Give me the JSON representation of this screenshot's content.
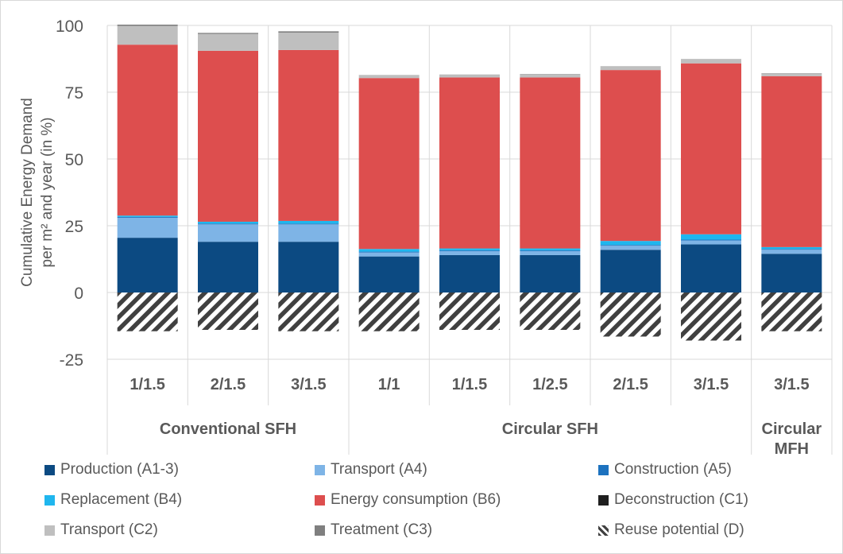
{
  "chart_data": {
    "type": "bar",
    "stacked": true,
    "ylabel": "Cumulative Energy Demand per m² and year (in %)",
    "ylim": [
      -25,
      100
    ],
    "yticks": [
      -25,
      0,
      25,
      50,
      75,
      100
    ],
    "grid": true,
    "legend_position": "bottom",
    "categories": [
      "1/1.5",
      "2/1.5",
      "3/1.5",
      "1/1",
      "1/1.5",
      "1/2.5",
      "2/1.5",
      "3/1.5",
      "3/1.5"
    ],
    "groups": [
      {
        "label": "Conventional SFH",
        "count": 3
      },
      {
        "label": "Circular SFH",
        "count": 5
      },
      {
        "label": "Circular MFH",
        "count": 1
      }
    ],
    "series": [
      {
        "name": "Production (A1-3)",
        "color": "#0c4a82",
        "values": [
          20.5,
          19,
          19,
          13.5,
          14,
          14,
          16,
          18,
          14.5
        ]
      },
      {
        "name": "Transport (A4)",
        "color": "#7eb4e6",
        "values": [
          7.5,
          6.5,
          6.5,
          1.5,
          1.5,
          1.5,
          1.5,
          1.5,
          1.5
        ]
      },
      {
        "name": "Construction (A5)",
        "color": "#1d72bf",
        "values": [
          0.3,
          0.3,
          0.3,
          0.3,
          0.3,
          0.3,
          0.3,
          0.3,
          0.3
        ]
      },
      {
        "name": "Replacement (B4)",
        "color": "#1fb6ee",
        "values": [
          0.5,
          0.7,
          1,
          1,
          0.7,
          0.7,
          1.5,
          2,
          0.7
        ]
      },
      {
        "name": "Energy consumption (B6)",
        "color": "#dd4e4e",
        "values": [
          64,
          64,
          64,
          64,
          64,
          64,
          64,
          64,
          64
        ]
      },
      {
        "name": "Deconstruction (C1)",
        "color": "#1f1f1f",
        "values": [
          0,
          0,
          0,
          0,
          0,
          0,
          0,
          0,
          0
        ]
      },
      {
        "name": "Transport (C2)",
        "color": "#bfbfbf",
        "values": [
          7,
          6.3,
          6.5,
          1,
          1,
          1.2,
          1.3,
          1.5,
          1
        ]
      },
      {
        "name": "Treatment (C3)",
        "color": "#7f7f7f",
        "values": [
          0.5,
          0.4,
          0.5,
          0.1,
          0.1,
          0.1,
          0.1,
          0.1,
          0.1
        ]
      },
      {
        "name": "Reuse potential (D)",
        "color": "#404040",
        "pattern": "hatch",
        "values": [
          -14.5,
          -14,
          -14.5,
          -14.5,
          -14,
          -14,
          -16.5,
          -18,
          -14.5
        ]
      }
    ]
  }
}
